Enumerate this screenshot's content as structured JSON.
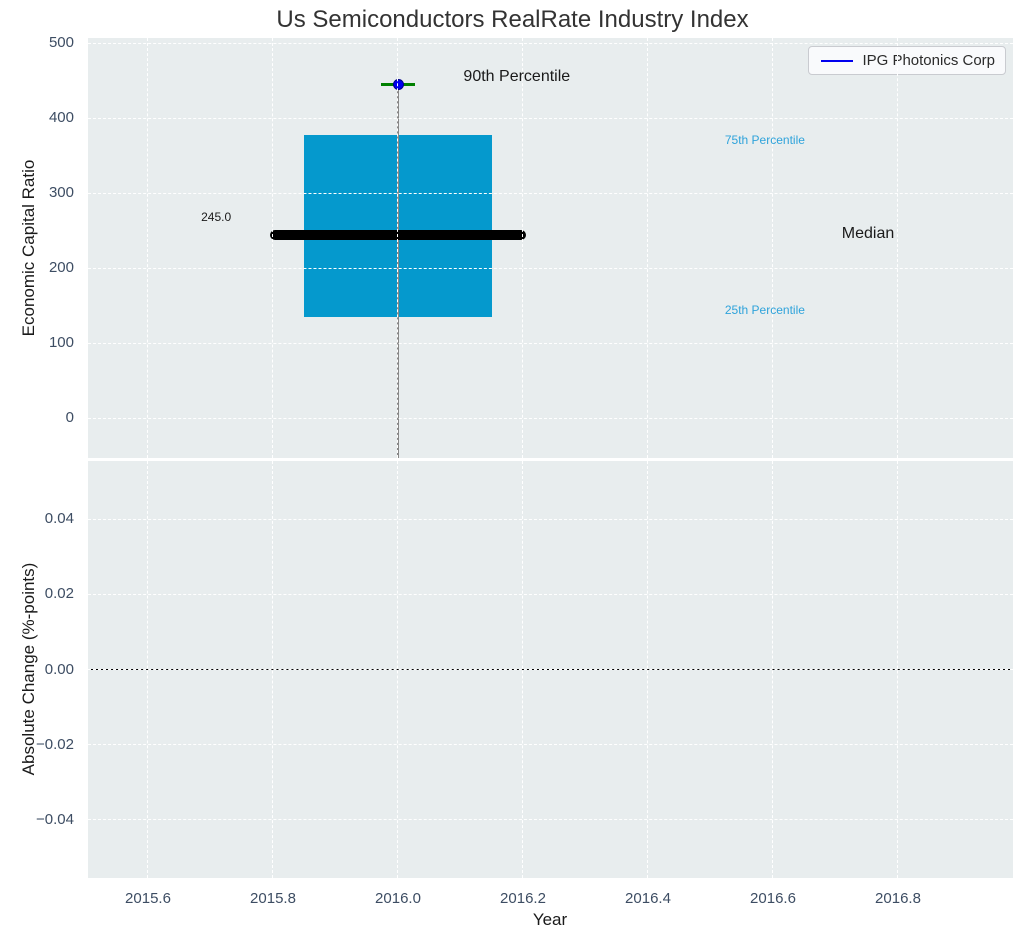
{
  "figure": {
    "background": "#ffffff",
    "axes_background": "#e8edee",
    "grid_color": "#ffffff",
    "tick_label_color": "#3d4d63"
  },
  "chart_data": [
    {
      "type": "box",
      "title": "Us Semiconductors RealRate Industry Index",
      "ylabel": "Economic Capital Ratio",
      "xlim": [
        2015.504,
        2016.984
      ],
      "ylim": [
        -53,
        507
      ],
      "grid": true,
      "legend_position": "upper right",
      "yticks": {
        "values": [
          0,
          100,
          200,
          300,
          400,
          500
        ],
        "labels": [
          "0",
          "100",
          "200",
          "300",
          "400",
          "500"
        ]
      },
      "xticks": {
        "values": [
          2015.6,
          2015.8,
          2016.0,
          2016.2,
          2016.4,
          2016.6,
          2016.8
        ],
        "labels": []
      },
      "series": [
        {
          "name": "IPG Photonics Corp",
          "x": 2016.0,
          "p25": 135,
          "median": 245,
          "p75": 378,
          "p90": 445,
          "company_value": 445,
          "median_label": "245.0",
          "colors": {
            "box_fill": "#0599cd",
            "median_line": "#000000",
            "whisker": "#888888",
            "p90_cap": "#008000",
            "company_marker": "#0000f0"
          }
        }
      ],
      "annotations": [
        {
          "text": "245.0",
          "x": 2015.685,
          "y": 268,
          "align": "left",
          "color": "#1a1a1a",
          "size": 12
        },
        {
          "text": "90th Percentile",
          "x": 2016.19,
          "y": 455,
          "align": "center",
          "color": "#1a1a1a",
          "size": 16
        },
        {
          "text": "75th Percentile",
          "x": 2016.587,
          "y": 371,
          "align": "center",
          "color": "#2ea3db",
          "size": 12
        },
        {
          "text": "Median",
          "x": 2016.752,
          "y": 246,
          "align": "center",
          "color": "#1a1a1a",
          "size": 16
        },
        {
          "text": "25th Percentile",
          "x": 2016.587,
          "y": 144,
          "align": "center",
          "color": "#2ea3db",
          "size": 12
        }
      ],
      "legend": {
        "label": "IPG Photonics Corp",
        "line_color": "#0000ee"
      }
    },
    {
      "type": "line",
      "xlabel": "Year",
      "ylabel": "Absolute Change (%-points)",
      "xlim": [
        2015.504,
        2016.984
      ],
      "ylim": [
        -0.0555,
        0.0555
      ],
      "grid": true,
      "yticks": {
        "values": [
          0.04,
          0.02,
          0.0,
          -0.02,
          -0.04
        ],
        "labels": [
          "0.04",
          "0.02",
          "0.00",
          "−0.02",
          "−0.04"
        ]
      },
      "xticks": {
        "values": [
          2015.6,
          2015.8,
          2016.0,
          2016.2,
          2016.4,
          2016.6,
          2016.8
        ],
        "labels": [
          "2015.6",
          "2015.8",
          "2016.0",
          "2016.2",
          "2016.4",
          "2016.6",
          "2016.8"
        ]
      },
      "series": [
        {
          "name": "zero-line",
          "y": 0.0,
          "color": "#000000"
        }
      ]
    }
  ]
}
